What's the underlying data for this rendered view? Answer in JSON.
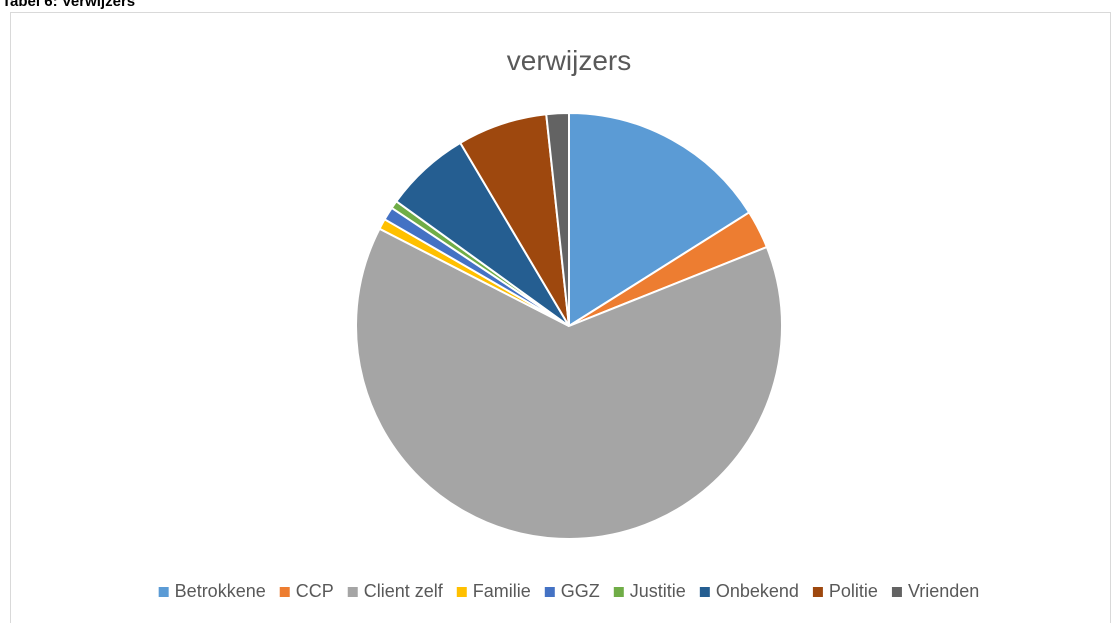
{
  "caption": "Tabel 6: Verwijzers",
  "chart_data": {
    "type": "pie",
    "title": "verwijzers",
    "categories": [
      "Betrokkene",
      "CCP",
      "Client zelf",
      "Familie",
      "GGZ",
      "Justitie",
      "Onbekend",
      "Politie",
      "Vrienden"
    ],
    "values": [
      16,
      2.9,
      63.4,
      0.8,
      1.0,
      0.6,
      6.5,
      6.8,
      1.7
    ],
    "colors": [
      "#5b9bd5",
      "#ed7d31",
      "#a5a5a5",
      "#ffc000",
      "#4472c4",
      "#70ad47",
      "#255e91",
      "#9e480e",
      "#636363"
    ],
    "legend": "bottom"
  }
}
